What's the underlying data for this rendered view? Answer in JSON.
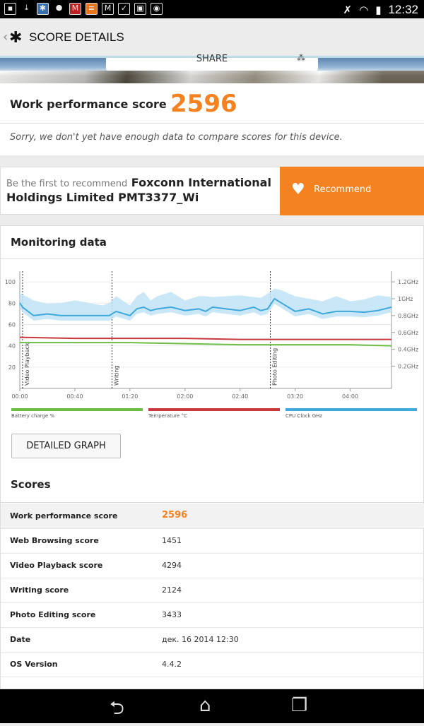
{
  "status_bar": {
    "time": "12:32",
    "left_icons": [
      "notification-icon",
      "download-icon",
      "snowflake-icon",
      "chat-icon",
      "shield-icon",
      "stack-icon",
      "gmail-icon",
      "check-icon",
      "bag-icon",
      "camera-icon"
    ],
    "right_icons": [
      "bluetooth-icon",
      "wifi-icon",
      "battery-icon"
    ]
  },
  "header": {
    "title": "SCORE DETAILS"
  },
  "share": {
    "label": "SHARE"
  },
  "summary": {
    "label": "Work performance score",
    "score": "2596",
    "notice": "Sorry, we don't yet have enough data to compare scores for this device."
  },
  "recommend": {
    "prefix": "Be the first to recommend",
    "device": "Foxconn International Holdings Limited PMT3377_Wi",
    "button_label": "Recommend"
  },
  "monitoring": {
    "title": "Monitoring data",
    "detailed_button": "DETAILED GRAPH"
  },
  "chart_data": {
    "type": "line",
    "x_ticks": [
      "00:00",
      "00:40",
      "01:20",
      "02:00",
      "02:40",
      "03:20",
      "04:00"
    ],
    "y_left_ticks": [
      "100",
      "80",
      "60",
      "40",
      "20"
    ],
    "y_right_ticks": [
      "1.2GHz",
      "1GHz",
      "0.8GHz",
      "0.6GHz",
      "0.4GHz",
      "0.2GHz"
    ],
    "segments": [
      "Video Playback",
      "Writing",
      "Photo Editing"
    ],
    "legend": [
      {
        "name": "Battery charge %",
        "color": "#6ebd45"
      },
      {
        "name": "Temperature °C",
        "color": "#c8383d"
      },
      {
        "name": "CPU Clock GHz",
        "color": "#3fa9dc"
      }
    ],
    "series": [
      {
        "name": "Battery charge %",
        "x": [
          0,
          40,
          80,
          120,
          160,
          200,
          240,
          270
        ],
        "values": [
          43,
          43,
          43,
          42,
          41,
          41,
          41,
          40
        ]
      },
      {
        "name": "Temperature °C",
        "x": [
          0,
          40,
          80,
          120,
          160,
          200,
          240,
          270
        ],
        "values": [
          48,
          47,
          47,
          47,
          46,
          46,
          46,
          46
        ]
      },
      {
        "name": "CPU Clock GHz",
        "x": [
          0,
          2,
          10,
          20,
          30,
          40,
          60,
          65,
          70,
          80,
          85,
          90,
          95,
          100,
          110,
          120,
          130,
          135,
          140,
          150,
          160,
          170,
          175,
          180,
          185,
          190,
          200,
          210,
          220,
          230,
          240,
          250,
          260,
          270
        ],
        "values": [
          0.95,
          0.9,
          0.8,
          0.82,
          0.8,
          0.8,
          0.8,
          0.8,
          0.85,
          0.8,
          0.88,
          0.9,
          0.86,
          0.88,
          0.9,
          0.86,
          0.88,
          0.85,
          0.9,
          0.88,
          0.86,
          0.9,
          0.86,
          0.88,
          1.0,
          0.95,
          0.85,
          0.88,
          0.82,
          0.85,
          0.85,
          0.84,
          0.86,
          0.9
        ]
      }
    ],
    "xlim": [
      0,
      270
    ],
    "ylim": [
      0,
      110
    ]
  },
  "scores": {
    "title": "Scores",
    "rows": [
      {
        "label": "Work performance score",
        "value": "2596",
        "highlight": true
      },
      {
        "label": "Web Browsing score",
        "value": "1451"
      },
      {
        "label": "Video Playback score",
        "value": "4294"
      },
      {
        "label": "Writing score",
        "value": "2124"
      },
      {
        "label": "Photo Editing score",
        "value": "3433"
      },
      {
        "label": "Date",
        "value": "дек. 16 2014 12:30"
      },
      {
        "label": "OS Version",
        "value": "4.4.2"
      }
    ]
  },
  "nav": {
    "icons": [
      "back-icon",
      "home-icon",
      "recents-icon"
    ]
  }
}
